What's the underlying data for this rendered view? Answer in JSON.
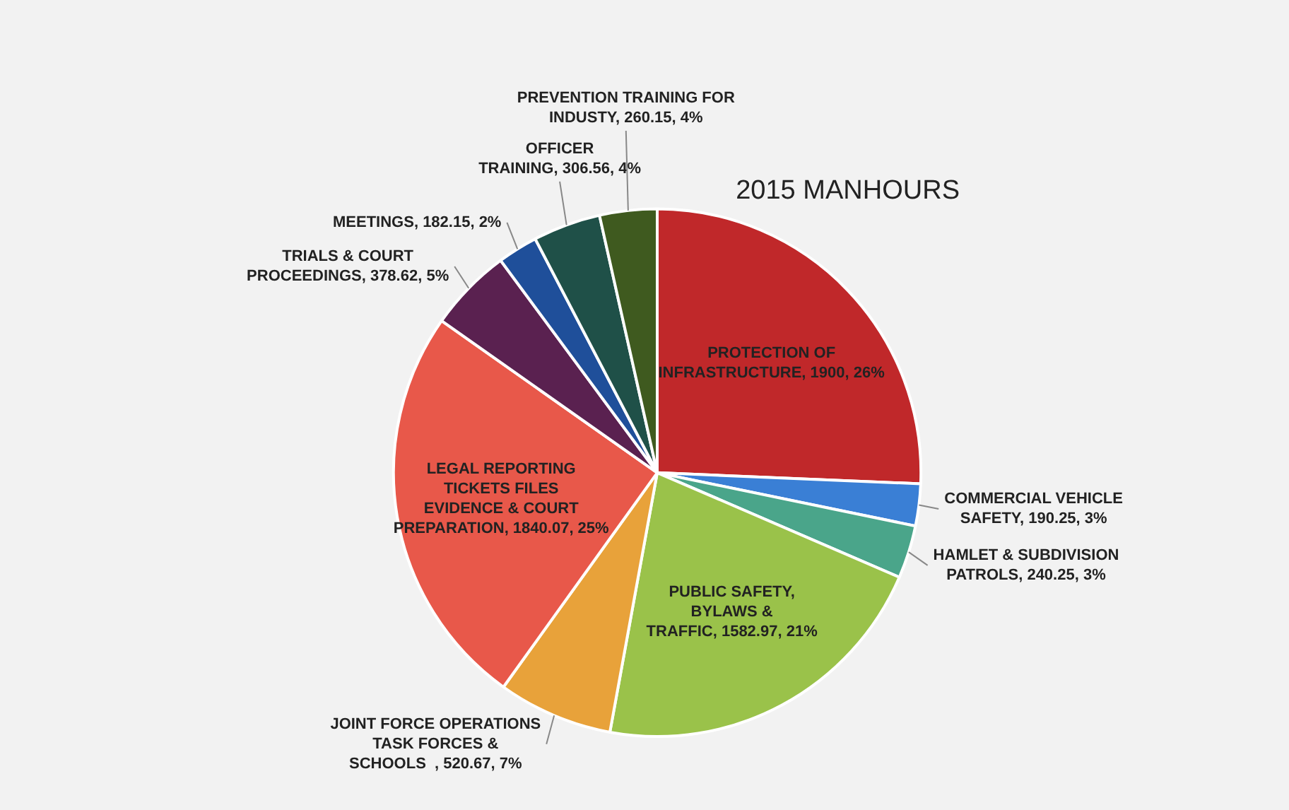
{
  "chart_data": {
    "type": "pie",
    "title": "2015 MANHOURS",
    "categories": [
      "PROTECTION OF INFRASTRUCTURE",
      "COMMERCIAL VEHICLE SAFETY",
      "HAMLET & SUBDIVISION PATROLS",
      "PUBLIC SAFETY, BYLAWS & TRAFFIC",
      "JOINT FORCE OPERATIONS TASK FORCES & SCHOOLS  ",
      "LEGAL REPORTING TICKETS FILES EVIDENCE & COURT PREPARATION",
      "TRIALS & COURT PROCEEDINGS",
      "MEETINGS",
      "OFFICER TRAINING",
      "PREVENTION TRAINING FOR INDUSTY"
    ],
    "values": [
      1900,
      190.25,
      240.25,
      1582.97,
      520.67,
      1840.07,
      378.62,
      182.15,
      306.56,
      260.15
    ],
    "value_labels": [
      "1900, 26%",
      "190.25, 3%",
      "240.25, 3%",
      "1582.97, 21%",
      "520.67, 7%",
      "1840.07, 25%",
      "378.62, 5%",
      "182.15, 2%",
      "306.56, 4%",
      "260.15, 4%"
    ],
    "colors": [
      "#c0282a",
      "#3a7fd5",
      "#4aa58a",
      "#9ac24a",
      "#e8a23a",
      "#e8584a",
      "#5a2150",
      "#1f4f9a",
      "#1f5048",
      "#3f5a1f"
    ],
    "legend": false
  }
}
